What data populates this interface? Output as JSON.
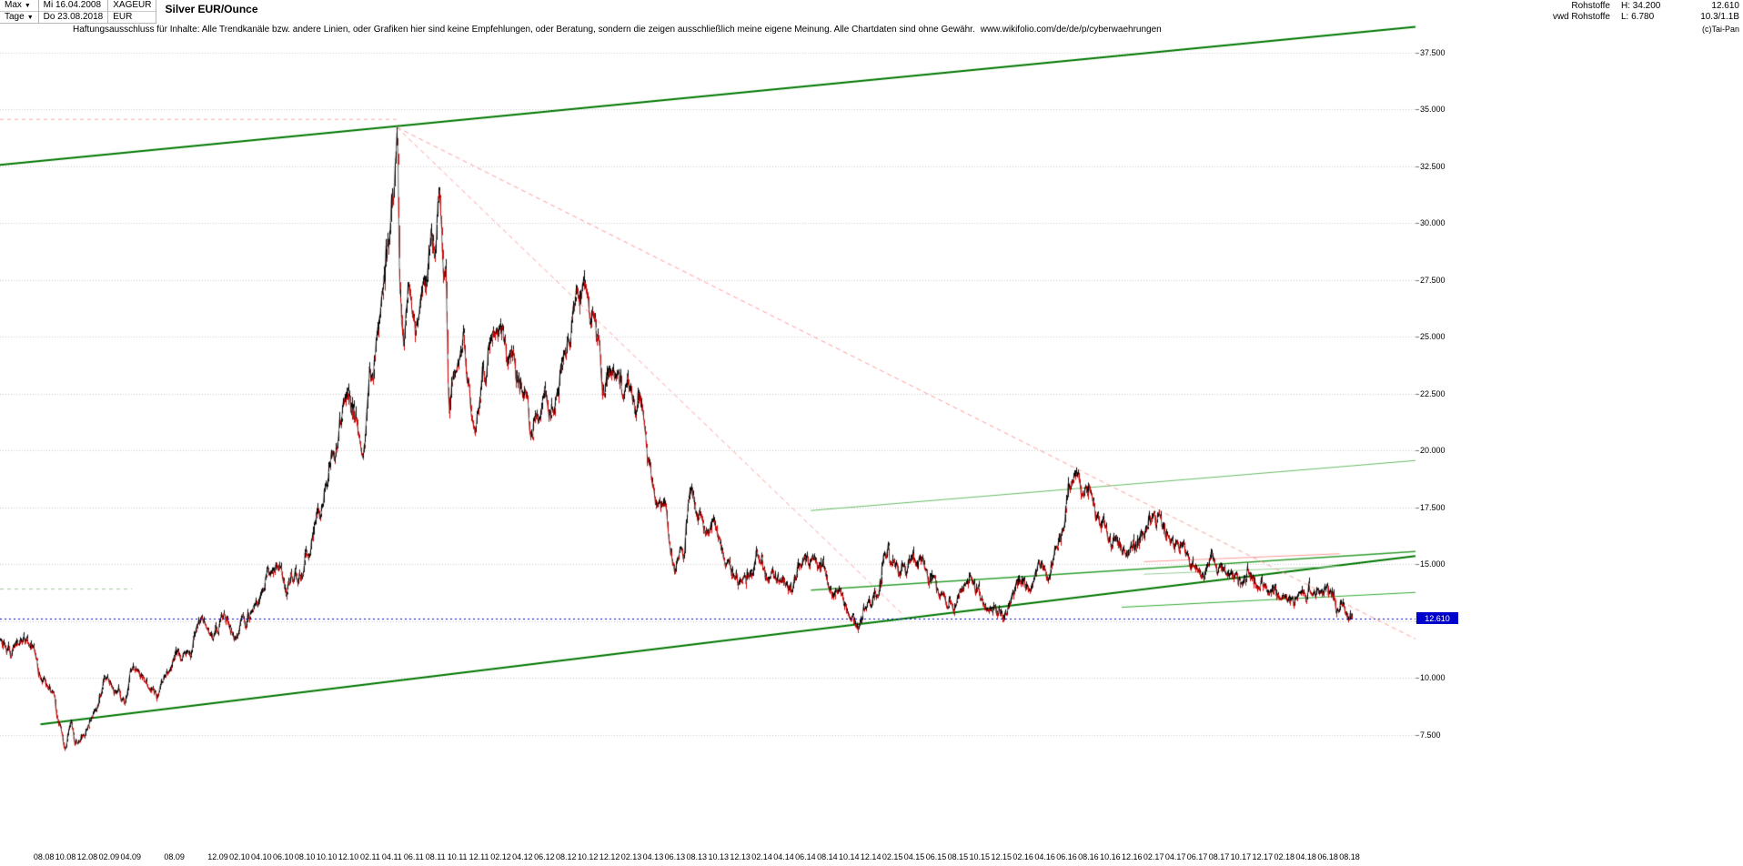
{
  "toolbar": {
    "range_selector": "Max",
    "period_selector": "Tage",
    "start_date": "Mi 16.04.2008",
    "end_date": "Do 23.08.2018",
    "symbol": "XAGEUR",
    "currency": "EUR",
    "instrument_title": "Silver EUR/Ounce"
  },
  "info": {
    "category": "Rohstoffe",
    "source": "vwd Rohstoffe",
    "high": "H: 34.200",
    "low": "L: 6.780",
    "last": "12.610",
    "extra": "10.3/1.1B"
  },
  "disclaimer": {
    "text": "Haftungsausschluss für Inhalte: Alle Trendkanäle bzw. andere Linien, oder Grafiken hier sind keine Empfehlungen, oder Beratung, sondern die zeigen ausschließlich meine eigene Meinung. Alle Chartdaten sind ohne Gewähr.",
    "link": "www.wikifolio.com/de/de/p/cyberwaehrungen",
    "copyright": "(c)Tai-Pan"
  },
  "chart_data": {
    "type": "line",
    "title": "Silver EUR/Ounce",
    "high_value": 34.2,
    "low_value": 6.78,
    "last": {
      "label": "12.610",
      "value": 12.61
    },
    "x_axis": {
      "t_start": 2008.29,
      "t_end_data": 2018.645,
      "t_end_plot": 2019.13,
      "labels": [
        "08.08",
        "10.08",
        "12.08",
        "02.09",
        "04.09",
        "08.09",
        "12.09",
        "02.10",
        "04.10",
        "06.10",
        "08.10",
        "10.10",
        "12.10",
        "02.11",
        "04.11",
        "06.11",
        "08.11",
        "10.11",
        "12.11",
        "02.12",
        "04.12",
        "06.12",
        "08.12",
        "10.12",
        "12.12",
        "02.13",
        "04.13",
        "06.13",
        "08.13",
        "10.13",
        "12.13",
        "02.14",
        "04.14",
        "06.14",
        "08.14",
        "10.14",
        "12.14",
        "02.15",
        "04.15",
        "06.15",
        "08.15",
        "10.15",
        "12.15",
        "02.16",
        "04.16",
        "06.16",
        "08.16",
        "10.16",
        "12.16",
        "02.17",
        "04.17",
        "06.17",
        "08.17",
        "10.17",
        "12.17",
        "02.18",
        "04.18",
        "06.18",
        "08.18"
      ]
    },
    "y_axis": {
      "v_top": 38.2,
      "v_bottom": 2.4,
      "ticks": [
        {
          "label": "37.500",
          "v": 37.5
        },
        {
          "label": "35.000",
          "v": 35.0
        },
        {
          "label": "32.500",
          "v": 32.5
        },
        {
          "label": "30.000",
          "v": 30.0
        },
        {
          "label": "27.500",
          "v": 27.5
        },
        {
          "label": "25.000",
          "v": 25.0
        },
        {
          "label": "22.500",
          "v": 22.5
        },
        {
          "label": "20.000",
          "v": 20.0
        },
        {
          "label": "17.500",
          "v": 17.5
        },
        {
          "label": "15.000",
          "v": 15.0
        },
        {
          "label": "12.500",
          "v": 12.5
        },
        {
          "label": "10.000",
          "v": 10.0
        },
        {
          "label": "7.500",
          "v": 7.5
        }
      ]
    },
    "series_keyframes": [
      [
        2008.29,
        11.6
      ],
      [
        2008.38,
        11.1
      ],
      [
        2008.47,
        11.9
      ],
      [
        2008.55,
        11.3
      ],
      [
        2008.62,
        9.6
      ],
      [
        2008.7,
        9.1
      ],
      [
        2008.74,
        8.0
      ],
      [
        2008.79,
        6.9
      ],
      [
        2008.83,
        8.1
      ],
      [
        2008.87,
        7.1
      ],
      [
        2008.93,
        7.6
      ],
      [
        2009.03,
        8.7
      ],
      [
        2009.1,
        10.1
      ],
      [
        2009.16,
        9.5
      ],
      [
        2009.24,
        9.0
      ],
      [
        2009.32,
        10.4
      ],
      [
        2009.4,
        10.0
      ],
      [
        2009.49,
        9.6
      ],
      [
        2009.57,
        10.2
      ],
      [
        2009.66,
        11.1
      ],
      [
        2009.74,
        11.3
      ],
      [
        2009.83,
        12.3
      ],
      [
        2009.91,
        12.0
      ],
      [
        2010.0,
        12.6
      ],
      [
        2010.09,
        11.7
      ],
      [
        2010.17,
        12.4
      ],
      [
        2010.25,
        13.3
      ],
      [
        2010.33,
        14.6
      ],
      [
        2010.41,
        15.1
      ],
      [
        2010.49,
        13.9
      ],
      [
        2010.57,
        14.3
      ],
      [
        2010.66,
        15.7
      ],
      [
        2010.74,
        17.1
      ],
      [
        2010.83,
        19.6
      ],
      [
        2010.91,
        21.6
      ],
      [
        2010.96,
        22.3
      ],
      [
        2011.02,
        21.5
      ],
      [
        2011.07,
        20.1
      ],
      [
        2011.14,
        23.5
      ],
      [
        2011.21,
        26.0
      ],
      [
        2011.26,
        28.6
      ],
      [
        2011.3,
        31.5
      ],
      [
        2011.33,
        34.2
      ],
      [
        2011.355,
        27.0
      ],
      [
        2011.38,
        24.9
      ],
      [
        2011.42,
        26.9
      ],
      [
        2011.47,
        24.7
      ],
      [
        2011.53,
        27.3
      ],
      [
        2011.6,
        29.0
      ],
      [
        2011.655,
        30.6
      ],
      [
        2011.7,
        28.0
      ],
      [
        2011.73,
        21.9
      ],
      [
        2011.78,
        23.6
      ],
      [
        2011.84,
        24.5
      ],
      [
        2011.88,
        22.8
      ],
      [
        2011.93,
        21.3
      ],
      [
        2012.0,
        23.0
      ],
      [
        2012.07,
        26.1
      ],
      [
        2012.12,
        25.2
      ],
      [
        2012.2,
        24.1
      ],
      [
        2012.29,
        22.7
      ],
      [
        2012.38,
        21.4
      ],
      [
        2012.47,
        21.9
      ],
      [
        2012.56,
        22.5
      ],
      [
        2012.64,
        24.6
      ],
      [
        2012.71,
        26.8
      ],
      [
        2012.76,
        27.3
      ],
      [
        2012.83,
        25.9
      ],
      [
        2012.92,
        23.4
      ],
      [
        2013.0,
        23.8
      ],
      [
        2013.07,
        22.9
      ],
      [
        2013.13,
        22.1
      ],
      [
        2013.2,
        22.4
      ],
      [
        2013.265,
        19.4
      ],
      [
        2013.31,
        17.9
      ],
      [
        2013.37,
        17.6
      ],
      [
        2013.45,
        15.1
      ],
      [
        2013.52,
        15.3
      ],
      [
        2013.58,
        18.1
      ],
      [
        2013.64,
        17.0
      ],
      [
        2013.71,
        16.3
      ],
      [
        2013.78,
        16.2
      ],
      [
        2013.85,
        15.0
      ],
      [
        2013.93,
        14.3
      ],
      [
        2014.0,
        14.2
      ],
      [
        2014.09,
        15.3
      ],
      [
        2014.17,
        14.7
      ],
      [
        2014.25,
        14.3
      ],
      [
        2014.33,
        13.9
      ],
      [
        2014.42,
        15.1
      ],
      [
        2014.5,
        15.5
      ],
      [
        2014.59,
        14.8
      ],
      [
        2014.67,
        13.8
      ],
      [
        2014.74,
        13.4
      ],
      [
        2014.81,
        12.6
      ],
      [
        2014.86,
        12.35
      ],
      [
        2014.93,
        13.0
      ],
      [
        2015.01,
        13.9
      ],
      [
        2015.07,
        15.8
      ],
      [
        2015.13,
        14.9
      ],
      [
        2015.21,
        14.6
      ],
      [
        2015.28,
        15.0
      ],
      [
        2015.35,
        15.3
      ],
      [
        2015.43,
        14.2
      ],
      [
        2015.51,
        13.6
      ],
      [
        2015.58,
        13.1
      ],
      [
        2015.66,
        13.9
      ],
      [
        2015.74,
        14.3
      ],
      [
        2015.82,
        13.4
      ],
      [
        2015.9,
        12.8
      ],
      [
        2015.96,
        12.7
      ],
      [
        2016.03,
        13.2
      ],
      [
        2016.1,
        14.1
      ],
      [
        2016.17,
        13.9
      ],
      [
        2016.24,
        15.0
      ],
      [
        2016.32,
        14.7
      ],
      [
        2016.4,
        15.9
      ],
      [
        2016.48,
        17.8
      ],
      [
        2016.54,
        18.9
      ],
      [
        2016.6,
        18.2
      ],
      [
        2016.67,
        17.6
      ],
      [
        2016.74,
        16.5
      ],
      [
        2016.82,
        16.0
      ],
      [
        2016.89,
        15.4
      ],
      [
        2016.96,
        15.7
      ],
      [
        2017.04,
        16.2
      ],
      [
        2017.11,
        17.0
      ],
      [
        2017.17,
        17.2
      ],
      [
        2017.25,
        16.2
      ],
      [
        2017.33,
        15.7
      ],
      [
        2017.42,
        14.9
      ],
      [
        2017.5,
        14.4
      ],
      [
        2017.57,
        15.2
      ],
      [
        2017.65,
        14.7
      ],
      [
        2017.74,
        14.5
      ],
      [
        2017.82,
        14.4
      ],
      [
        2017.91,
        14.2
      ],
      [
        2018.0,
        14.1
      ],
      [
        2018.09,
        13.5
      ],
      [
        2018.17,
        13.3
      ],
      [
        2018.25,
        13.6
      ],
      [
        2018.33,
        14.0
      ],
      [
        2018.41,
        13.9
      ],
      [
        2018.49,
        13.4
      ],
      [
        2018.56,
        13.1
      ],
      [
        2018.61,
        12.9
      ],
      [
        2018.645,
        12.61
      ]
    ],
    "noise": {
      "seed": 20180823,
      "vol": 0.009,
      "ar": 0.82,
      "points": 2600
    },
    "trendlines": [
      {
        "name": "channel-top",
        "t1": 2008.29,
        "v1": 32.55,
        "t2": 2019.13,
        "v2": 38.62,
        "color": "#007700",
        "w": 2
      },
      {
        "name": "channel-bottom",
        "t1": 2008.6,
        "v1": 7.95,
        "t2": 2019.13,
        "v2": 15.35,
        "color": "#007700",
        "w": 2
      },
      {
        "name": "support-2014",
        "t1": 2014.5,
        "v1": 13.85,
        "t2": 2019.13,
        "v2": 15.55,
        "color": "#2f9e2f",
        "w": 1.5
      },
      {
        "name": "resistance-2014",
        "t1": 2014.5,
        "v1": 17.35,
        "t2": 2019.13,
        "v2": 19.55,
        "color": "#66bb66",
        "w": 1
      },
      {
        "name": "support-recent",
        "t1": 2016.88,
        "v1": 13.1,
        "t2": 2019.13,
        "v2": 13.75,
        "color": "#33aa33",
        "w": 1
      },
      {
        "name": "mini-channel-top",
        "t1": 2017.05,
        "v1": 15.1,
        "t2": 2018.55,
        "v2": 15.45,
        "color": "#ff9999",
        "w": 1
      },
      {
        "name": "mini-channel-bottom",
        "t1": 2017.05,
        "v1": 14.55,
        "t2": 2018.55,
        "v2": 14.9,
        "color": "#99cc99",
        "w": 1
      },
      {
        "name": "fan-1",
        "t1": 2011.33,
        "v1": 34.2,
        "t2": 2019.13,
        "v2": 11.7,
        "color": "#ff9999",
        "w": 1,
        "dash": [
          5,
          4
        ]
      },
      {
        "name": "fan-2",
        "t1": 2011.33,
        "v1": 34.2,
        "t2": 2015.2,
        "v2": 12.8,
        "color": "#ff9999",
        "w": 1,
        "dash": [
          5,
          4
        ]
      },
      {
        "name": "ath-line",
        "t1": 2008.29,
        "v1": 34.55,
        "t2": 2011.33,
        "v2": 34.55,
        "color": "#ffaaaa",
        "w": 1,
        "dash": [
          4,
          4
        ]
      },
      {
        "name": "left-support",
        "t1": 2008.29,
        "v1": 13.9,
        "t2": 2009.3,
        "v2": 13.9,
        "color": "#99cc99",
        "w": 1,
        "dash": [
          4,
          4
        ]
      }
    ],
    "colors": {
      "up": "#000000",
      "down": "#cc0000",
      "grid": "#c9c9c9",
      "marker_line": "#0000cd"
    }
  }
}
